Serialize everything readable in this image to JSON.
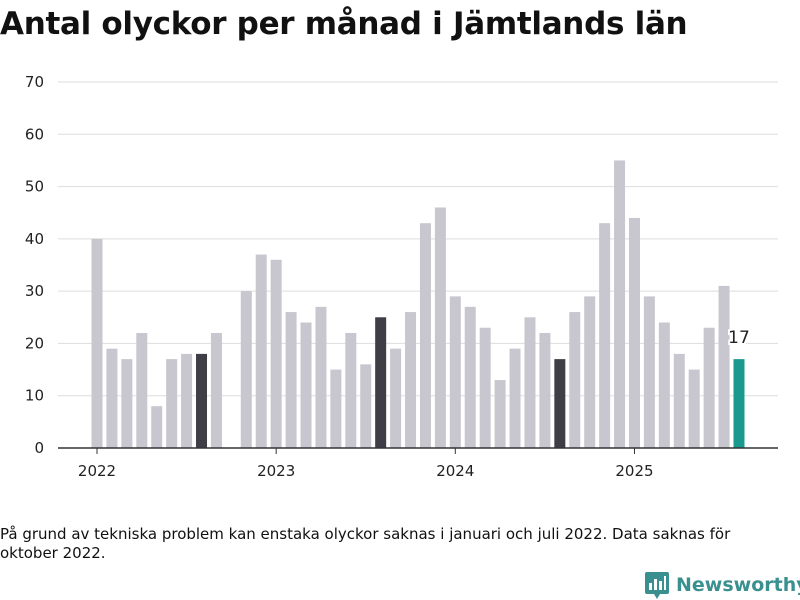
{
  "title": "Antal olyckor per månad i Jämtlands län",
  "footnote": "På grund av tekniska problem kan enstaka olyckor saknas i januari och juli 2022. Data saknas för oktober 2022.",
  "brand": {
    "name": "Newsworthy",
    "icon": "bar-chart-logo-icon",
    "color": "#3a8f8f"
  },
  "colors": {
    "default": "#c8c7cf",
    "highlight": "#3f3e47",
    "latest": "#1a9a8f",
    "grid": "#dddddd",
    "axis": "#333333"
  },
  "chart_data": {
    "type": "bar",
    "title": "Antal olyckor per månad i Jämtlands län",
    "xlabel": "",
    "ylabel": "",
    "ylim": [
      0,
      70
    ],
    "yticks": [
      0,
      10,
      20,
      30,
      40,
      50,
      60,
      70
    ],
    "grid": true,
    "xtick_labels": [
      {
        "label": "2022",
        "month": "2022-01"
      },
      {
        "label": "2023",
        "month": "2023-01"
      },
      {
        "label": "2024",
        "month": "2024-01"
      },
      {
        "label": "2025",
        "month": "2025-01"
      }
    ],
    "data_label": {
      "month": "2025-08",
      "text": "17"
    },
    "bars": [
      {
        "month": "2022-01",
        "value": 40,
        "style": "default"
      },
      {
        "month": "2022-02",
        "value": 19,
        "style": "default"
      },
      {
        "month": "2022-03",
        "value": 17,
        "style": "default"
      },
      {
        "month": "2022-04",
        "value": 22,
        "style": "default"
      },
      {
        "month": "2022-05",
        "value": 8,
        "style": "default"
      },
      {
        "month": "2022-06",
        "value": 17,
        "style": "default"
      },
      {
        "month": "2022-07",
        "value": 18,
        "style": "default"
      },
      {
        "month": "2022-08",
        "value": 18,
        "style": "highlight"
      },
      {
        "month": "2022-09",
        "value": 22,
        "style": "default"
      },
      {
        "month": "2022-10",
        "value": null,
        "style": "default"
      },
      {
        "month": "2022-11",
        "value": 30,
        "style": "default"
      },
      {
        "month": "2022-12",
        "value": 37,
        "style": "default"
      },
      {
        "month": "2023-01",
        "value": 36,
        "style": "default"
      },
      {
        "month": "2023-02",
        "value": 26,
        "style": "default"
      },
      {
        "month": "2023-03",
        "value": 24,
        "style": "default"
      },
      {
        "month": "2023-04",
        "value": 27,
        "style": "default"
      },
      {
        "month": "2023-05",
        "value": 15,
        "style": "default"
      },
      {
        "month": "2023-06",
        "value": 22,
        "style": "default"
      },
      {
        "month": "2023-07",
        "value": 16,
        "style": "default"
      },
      {
        "month": "2023-08",
        "value": 25,
        "style": "highlight"
      },
      {
        "month": "2023-09",
        "value": 19,
        "style": "default"
      },
      {
        "month": "2023-10",
        "value": 26,
        "style": "default"
      },
      {
        "month": "2023-11",
        "value": 43,
        "style": "default"
      },
      {
        "month": "2023-12",
        "value": 46,
        "style": "default"
      },
      {
        "month": "2024-01",
        "value": 29,
        "style": "default"
      },
      {
        "month": "2024-02",
        "value": 27,
        "style": "default"
      },
      {
        "month": "2024-03",
        "value": 23,
        "style": "default"
      },
      {
        "month": "2024-04",
        "value": 13,
        "style": "default"
      },
      {
        "month": "2024-05",
        "value": 19,
        "style": "default"
      },
      {
        "month": "2024-06",
        "value": 25,
        "style": "default"
      },
      {
        "month": "2024-07",
        "value": 22,
        "style": "default"
      },
      {
        "month": "2024-08",
        "value": 17,
        "style": "highlight"
      },
      {
        "month": "2024-09",
        "value": 26,
        "style": "default"
      },
      {
        "month": "2024-10",
        "value": 29,
        "style": "default"
      },
      {
        "month": "2024-11",
        "value": 43,
        "style": "default"
      },
      {
        "month": "2024-12",
        "value": 55,
        "style": "default"
      },
      {
        "month": "2025-01",
        "value": 44,
        "style": "default"
      },
      {
        "month": "2025-02",
        "value": 29,
        "style": "default"
      },
      {
        "month": "2025-03",
        "value": 24,
        "style": "default"
      },
      {
        "month": "2025-04",
        "value": 18,
        "style": "default"
      },
      {
        "month": "2025-05",
        "value": 15,
        "style": "default"
      },
      {
        "month": "2025-06",
        "value": 23,
        "style": "default"
      },
      {
        "month": "2025-07",
        "value": 31,
        "style": "default"
      },
      {
        "month": "2025-08",
        "value": 17,
        "style": "latest"
      }
    ]
  }
}
